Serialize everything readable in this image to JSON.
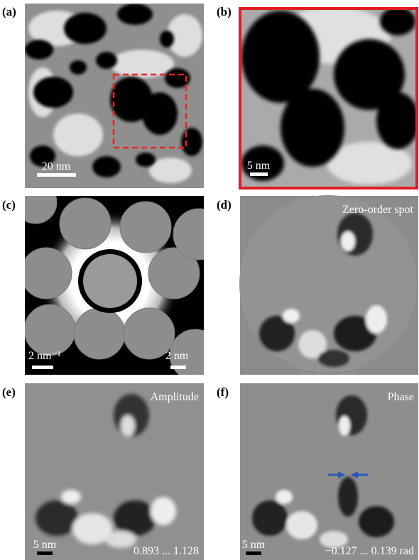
{
  "panels": [
    {
      "label": "(a)",
      "scale_bar": "20 nm"
    },
    {
      "label": "(b)",
      "scale_bar": "5 nm"
    },
    {
      "label": "(c)",
      "scale_bar_left": "2 nm⁻¹",
      "scale_bar_right": "2 nm"
    },
    {
      "label": "(d)",
      "title": "Zero-order spot"
    },
    {
      "label": "(e)",
      "title": "Amplitude",
      "scale_bar": "5 nm",
      "range": "0.893 ... 1.128"
    },
    {
      "label": "(f)",
      "title": "Phase",
      "scale_bar": "5 nm",
      "range": "−0.127 ... 0.139 rad"
    }
  ]
}
